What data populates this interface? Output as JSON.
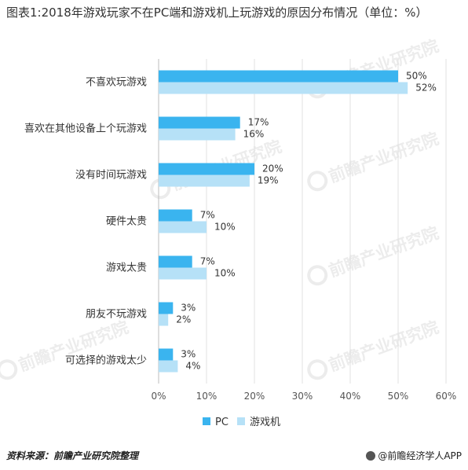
{
  "chart_data": {
    "type": "bar",
    "orientation": "horizontal",
    "title": "图表1:2018年游戏玩家不在PC端和游戏机上玩游戏的原因分布情况（单位：%）",
    "categories": [
      "不喜欢玩游戏",
      "喜欢在其他设备上个玩游戏",
      "没有时间玩游戏",
      "硬件太贵",
      "游戏太贵",
      "朋友不玩游戏",
      "可选择的游戏太少"
    ],
    "series": [
      {
        "name": "PC",
        "values": [
          50,
          17,
          20,
          7,
          7,
          3,
          3
        ],
        "color": "#3ab4ef"
      },
      {
        "name": "游戏机",
        "values": [
          52,
          16,
          19,
          10,
          10,
          2,
          4
        ],
        "color": "#b6e1f7"
      }
    ],
    "value_suffix": "%",
    "xlim": [
      0,
      60
    ],
    "xticks": [
      "0%",
      "10%",
      "20%",
      "30%",
      "40%",
      "50%",
      "60%"
    ],
    "grid": true,
    "legend_position": "bottom"
  },
  "footer": {
    "source": "资料来源：前瞻产业研究院整理",
    "brand": "@前瞻经济学人APP"
  },
  "watermark": {
    "text": "前瞻产业研究院"
  }
}
